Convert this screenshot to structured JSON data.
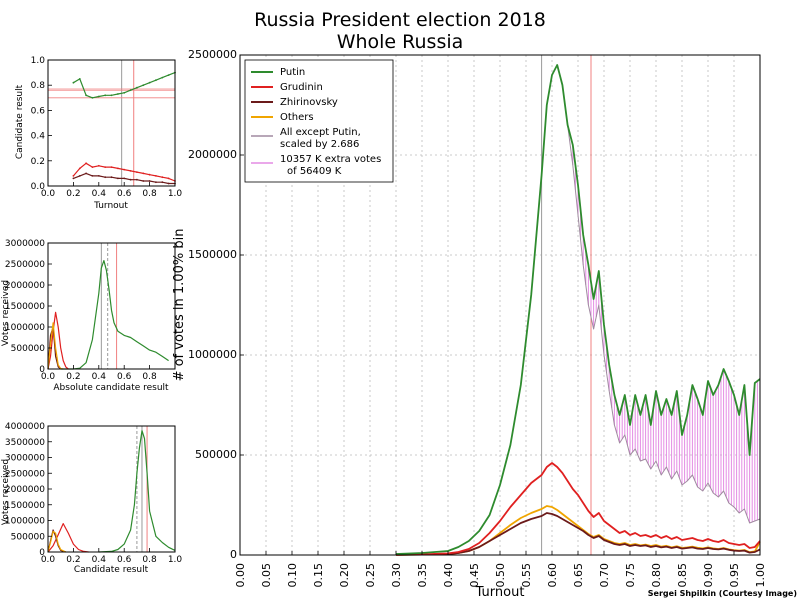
{
  "figure": {
    "title_line1": "Russia President election 2018",
    "title_line2": "Whole Russia",
    "credit": "Sergei Shpilkin (Courtesy Image)"
  },
  "colors": {
    "putin": "#2e8b2e",
    "grudinin": "#e02020",
    "zhirinovsky": "#6b1a1a",
    "others": "#f0a500",
    "scaled": "#a08aa0",
    "extra": "#e48ce4",
    "vline_gray": "#9a9a9a",
    "vline_red": "#f08080"
  },
  "chart_data": [
    {
      "id": "main",
      "type": "line",
      "xlabel": "Turnout",
      "ylabel": "# of votes in 1.00% bin",
      "xlim": [
        0,
        1
      ],
      "ylim": [
        0,
        2500000
      ],
      "xticks": [
        "0.00",
        "0.05",
        "0.10",
        "0.15",
        "0.20",
        "0.25",
        "0.30",
        "0.35",
        "0.40",
        "0.45",
        "0.50",
        "0.55",
        "0.60",
        "0.65",
        "0.70",
        "0.75",
        "0.80",
        "0.85",
        "0.90",
        "0.95",
        "1.00"
      ],
      "yticks": [
        "0",
        "500000",
        "1000000",
        "1500000",
        "2000000",
        "2500000"
      ],
      "grid": true,
      "vlines": [
        {
          "x": 0.58,
          "color": "gray"
        },
        {
          "x": 0.675,
          "color": "red"
        }
      ],
      "legend": {
        "position": "top-left",
        "entries": [
          {
            "label": "Putin",
            "color": "#2e8b2e"
          },
          {
            "label": "Grudinin",
            "color": "#e02020"
          },
          {
            "label": "Zhirinovsky",
            "color": "#6b1a1a"
          },
          {
            "label": "Others",
            "color": "#f0a500"
          },
          {
            "label": "All except Putin,",
            "label2": "scaled by 2.686",
            "color": "#a08aa0"
          },
          {
            "label": "10357 K extra votes",
            "label2": "of 56409 K",
            "color": "#e48ce4"
          }
        ]
      },
      "x": [
        0.3,
        0.35,
        0.4,
        0.42,
        0.44,
        0.46,
        0.48,
        0.5,
        0.52,
        0.54,
        0.56,
        0.58,
        0.59,
        0.6,
        0.61,
        0.62,
        0.63,
        0.64,
        0.65,
        0.66,
        0.67,
        0.68,
        0.69,
        0.7,
        0.71,
        0.72,
        0.73,
        0.74,
        0.75,
        0.76,
        0.77,
        0.78,
        0.79,
        0.8,
        0.81,
        0.82,
        0.83,
        0.84,
        0.85,
        0.86,
        0.87,
        0.88,
        0.89,
        0.9,
        0.91,
        0.92,
        0.93,
        0.94,
        0.95,
        0.96,
        0.97,
        0.98,
        0.99,
        1.0
      ],
      "series": [
        {
          "name": "Putin",
          "values": [
            5000,
            10000,
            20000,
            40000,
            70000,
            120000,
            200000,
            350000,
            550000,
            850000,
            1300000,
            1900000,
            2250000,
            2400000,
            2450000,
            2350000,
            2150000,
            2050000,
            1850000,
            1600000,
            1450000,
            1280000,
            1420000,
            1150000,
            950000,
            800000,
            700000,
            800000,
            650000,
            800000,
            700000,
            800000,
            650000,
            820000,
            700000,
            780000,
            700000,
            820000,
            600000,
            700000,
            850000,
            780000,
            700000,
            870000,
            800000,
            850000,
            930000,
            870000,
            800000,
            700000,
            850000,
            500000,
            860000,
            880000
          ]
        },
        {
          "name": "Grudinin",
          "values": [
            1000,
            3000,
            8000,
            15000,
            30000,
            60000,
            110000,
            170000,
            240000,
            300000,
            360000,
            400000,
            440000,
            460000,
            440000,
            410000,
            370000,
            330000,
            300000,
            260000,
            220000,
            190000,
            210000,
            170000,
            150000,
            130000,
            110000,
            120000,
            100000,
            110000,
            95000,
            100000,
            90000,
            100000,
            85000,
            95000,
            80000,
            90000,
            75000,
            80000,
            85000,
            75000,
            70000,
            80000,
            70000,
            65000,
            75000,
            60000,
            55000,
            50000,
            55000,
            35000,
            40000,
            70000
          ]
        },
        {
          "name": "Zhirinovsky",
          "values": [
            800,
            2000,
            5000,
            10000,
            20000,
            40000,
            70000,
            100000,
            130000,
            160000,
            180000,
            195000,
            210000,
            205000,
            195000,
            180000,
            165000,
            150000,
            135000,
            120000,
            100000,
            85000,
            95000,
            75000,
            65000,
            55000,
            50000,
            55000,
            45000,
            50000,
            45000,
            48000,
            40000,
            45000,
            38000,
            42000,
            35000,
            40000,
            32000,
            35000,
            38000,
            32000,
            30000,
            35000,
            30000,
            28000,
            32000,
            26000,
            22000,
            20000,
            22000,
            12000,
            15000,
            28000
          ]
        },
        {
          "name": "Others",
          "values": [
            800,
            2000,
            5000,
            10000,
            20000,
            40000,
            70000,
            110000,
            150000,
            185000,
            210000,
            230000,
            245000,
            240000,
            225000,
            205000,
            185000,
            165000,
            145000,
            125000,
            105000,
            90000,
            100000,
            80000,
            70000,
            60000,
            55000,
            60000,
            50000,
            55000,
            48000,
            52000,
            45000,
            50000,
            42000,
            46000,
            38000,
            44000,
            35000,
            38000,
            42000,
            36000,
            33000,
            38000,
            33000,
            30000,
            35000,
            28000,
            24000,
            22000,
            25000,
            14000,
            18000,
            65000
          ]
        },
        {
          "name": "All except Putin, scaled by 2.686",
          "values": [
            5000,
            10000,
            20000,
            40000,
            70000,
            120000,
            200000,
            350000,
            550000,
            850000,
            1300000,
            1900000,
            2250000,
            2400000,
            2450000,
            2350000,
            2150000,
            1950000,
            1700000,
            1450000,
            1250000,
            1130000,
            1250000,
            1000000,
            820000,
            650000,
            560000,
            600000,
            500000,
            530000,
            470000,
            480000,
            430000,
            470000,
            400000,
            440000,
            380000,
            420000,
            350000,
            370000,
            400000,
            340000,
            320000,
            360000,
            310000,
            290000,
            320000,
            260000,
            240000,
            210000,
            230000,
            160000,
            170000,
            180000
          ]
        }
      ]
    },
    {
      "id": "scatter",
      "type": "scatter",
      "xlabel": "Turnout",
      "ylabel": "Candidate result",
      "xlim": [
        0,
        1
      ],
      "ylim": [
        0,
        1
      ],
      "xticks": [
        "0.0",
        "0.2",
        "0.4",
        "0.6",
        "0.8",
        "1.0"
      ],
      "yticks": [
        "0.0",
        "0.2",
        "0.4",
        "0.6",
        "0.8",
        "1.0"
      ],
      "series": [
        {
          "name": "Putin",
          "x": [
            0.2,
            0.25,
            0.3,
            0.35,
            0.4,
            0.45,
            0.5,
            0.55,
            0.6,
            0.65,
            0.7,
            0.75,
            0.8,
            0.85,
            0.9,
            0.95,
            1.0
          ],
          "values": [
            0.82,
            0.85,
            0.72,
            0.7,
            0.71,
            0.72,
            0.72,
            0.73,
            0.74,
            0.76,
            0.78,
            0.8,
            0.82,
            0.84,
            0.86,
            0.88,
            0.9
          ]
        },
        {
          "name": "Grudinin",
          "x": [
            0.2,
            0.25,
            0.3,
            0.35,
            0.4,
            0.45,
            0.5,
            0.55,
            0.6,
            0.65,
            0.7,
            0.75,
            0.8,
            0.85,
            0.9,
            0.95,
            1.0
          ],
          "values": [
            0.08,
            0.14,
            0.18,
            0.15,
            0.16,
            0.15,
            0.15,
            0.14,
            0.13,
            0.12,
            0.11,
            0.1,
            0.09,
            0.08,
            0.07,
            0.06,
            0.04
          ]
        },
        {
          "name": "Zhirinovsky",
          "x": [
            0.2,
            0.25,
            0.3,
            0.35,
            0.4,
            0.45,
            0.5,
            0.55,
            0.6,
            0.65,
            0.7,
            0.75,
            0.8,
            0.85,
            0.9,
            0.95,
            1.0
          ],
          "values": [
            0.06,
            0.08,
            0.1,
            0.08,
            0.08,
            0.07,
            0.07,
            0.06,
            0.06,
            0.05,
            0.05,
            0.04,
            0.04,
            0.03,
            0.03,
            0.02,
            0.02
          ]
        }
      ],
      "hlines": [
        0.77,
        0.76,
        0.7
      ]
    },
    {
      "id": "absolute",
      "type": "line",
      "xlabel": "Absolute candidate result",
      "ylabel": "Votes received",
      "xlim": [
        0,
        1
      ],
      "ylim": [
        0,
        3000000
      ],
      "xticks": [
        "0.0",
        "0.2",
        "0.4",
        "0.6",
        "0.8"
      ],
      "yticks": [
        "0",
        "500000",
        "1000000",
        "1500000",
        "2000000",
        "2500000",
        "3000000"
      ],
      "series": [
        {
          "name": "Putin",
          "x": [
            0.1,
            0.2,
            0.25,
            0.3,
            0.35,
            0.4,
            0.42,
            0.44,
            0.46,
            0.48,
            0.5,
            0.52,
            0.55,
            0.6,
            0.65,
            0.7,
            0.75,
            0.8,
            0.85,
            0.9,
            0.95
          ],
          "values": [
            0,
            0,
            20000,
            150000,
            700000,
            1800000,
            2400000,
            2580000,
            2350000,
            1900000,
            1400000,
            1100000,
            900000,
            800000,
            750000,
            650000,
            550000,
            450000,
            400000,
            300000,
            200000
          ]
        },
        {
          "name": "Grudinin",
          "x": [
            0.0,
            0.02,
            0.04,
            0.06,
            0.08,
            0.1,
            0.12,
            0.14,
            0.16
          ],
          "values": [
            0,
            300000,
            900000,
            1350000,
            1000000,
            500000,
            200000,
            50000,
            0
          ]
        },
        {
          "name": "Zhirinovsky",
          "x": [
            0.0,
            0.02,
            0.04,
            0.06,
            0.08,
            0.1
          ],
          "values": [
            0,
            800000,
            1000000,
            300000,
            50000,
            0
          ]
        },
        {
          "name": "Others",
          "x": [
            0.0,
            0.02,
            0.04,
            0.06,
            0.08,
            0.1,
            0.12
          ],
          "values": [
            0,
            600000,
            1100000,
            500000,
            100000,
            10000,
            0
          ]
        }
      ],
      "vlines": [
        0.42,
        0.47,
        0.54
      ]
    },
    {
      "id": "relative",
      "type": "line",
      "xlabel": "Candidate result",
      "ylabel": "Votes received",
      "xlim": [
        0,
        1
      ],
      "ylim": [
        0,
        4000000
      ],
      "xticks": [
        "0.0",
        "0.2",
        "0.4",
        "0.6",
        "0.8",
        "1.0"
      ],
      "yticks": [
        "0",
        "500000",
        "1000000",
        "1500000",
        "2000000",
        "2500000",
        "3000000",
        "3500000",
        "4000000"
      ],
      "series": [
        {
          "name": "Putin",
          "x": [
            0.4,
            0.5,
            0.55,
            0.6,
            0.65,
            0.68,
            0.7,
            0.72,
            0.74,
            0.76,
            0.78,
            0.8,
            0.85,
            0.9,
            0.95,
            1.0
          ],
          "values": [
            0,
            20000,
            80000,
            250000,
            700000,
            1500000,
            2500000,
            3300000,
            3850000,
            3600000,
            2500000,
            1300000,
            500000,
            300000,
            150000,
            50000
          ]
        },
        {
          "name": "Grudinin",
          "x": [
            0.0,
            0.04,
            0.08,
            0.12,
            0.16,
            0.2,
            0.24,
            0.28,
            0.32
          ],
          "values": [
            0,
            200000,
            550000,
            900000,
            600000,
            250000,
            80000,
            20000,
            0
          ]
        },
        {
          "name": "Zhirinovsky",
          "x": [
            0.0,
            0.02,
            0.04,
            0.06,
            0.08,
            0.1,
            0.14
          ],
          "values": [
            0,
            350000,
            700000,
            500000,
            200000,
            50000,
            0
          ]
        },
        {
          "name": "Others",
          "x": [
            0.0,
            0.02,
            0.04,
            0.06,
            0.08,
            0.1,
            0.14
          ],
          "values": [
            0,
            300000,
            650000,
            600000,
            250000,
            80000,
            0
          ]
        }
      ],
      "vlines": [
        0.7,
        0.74,
        0.78
      ]
    }
  ]
}
